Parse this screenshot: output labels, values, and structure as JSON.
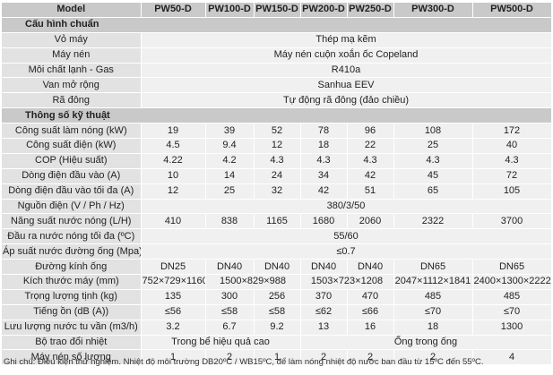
{
  "header": {
    "model_label": "Model",
    "columns": [
      "PW50-D",
      "PW100-D",
      "PW150-D",
      "PW200-D",
      "PW250-D",
      "PW300-D",
      "PW500-D"
    ]
  },
  "sections": {
    "standard": "Cấu hình chuẩn",
    "technical": "Thông số kỹ thuật"
  },
  "standard_rows": [
    {
      "label": "Vỏ máy",
      "value": "Thép mạ kẽm"
    },
    {
      "label": "Máy nén",
      "value": "Máy nén cuộn xoắn ốc Copeland"
    },
    {
      "label": "Môi chất lạnh - Gas",
      "value": "R410a"
    },
    {
      "label": "Van mở rộng",
      "value": "Sanhua EEV"
    },
    {
      "label": "Rã đông",
      "value": "Tự động rã đông (đảo chiều)"
    }
  ],
  "tech": {
    "heating_capacity": {
      "label": "Công suất làm nóng (kW)",
      "values": [
        "19",
        "39",
        "52",
        "78",
        "96",
        "108",
        "172"
      ]
    },
    "power": {
      "label": "Công suất điện (kW)",
      "values": [
        "4.5",
        "9.4",
        "12",
        "18",
        "22",
        "25",
        "40"
      ]
    },
    "cop": {
      "label": "COP (Hiệu suất)",
      "values": [
        "4.22",
        "4.2",
        "4.3",
        "4.3",
        "4.3",
        "4.3",
        "4.3"
      ]
    },
    "input_current": {
      "label": "Dòng điện đầu vào (A)",
      "values": [
        "10",
        "14",
        "24",
        "34",
        "42",
        "45",
        "72"
      ]
    },
    "max_current": {
      "label": "Dòng điện đầu vào tối đa (A)",
      "values": [
        "12",
        "25",
        "32",
        "42",
        "51",
        "65",
        "105"
      ]
    },
    "power_supply": {
      "label": "Nguồn điện (V / Ph / Hz)",
      "value": "380/3/50"
    },
    "hot_water": {
      "label": "Năng suất nước nóng (L/H)",
      "values": [
        "410",
        "838",
        "1165",
        "1680",
        "2060",
        "2322",
        "3700"
      ]
    },
    "max_outlet": {
      "label": "Đầu ra nước nóng tối đa (ºC)",
      "value": "55/60"
    },
    "pipe_pressure": {
      "label": "Áp suất nước đường ống (Mpa)",
      "value": "≤0.7"
    },
    "pipe_diameter": {
      "label": "Đường kính ống",
      "values": [
        "DN25",
        "DN40",
        "DN40",
        "DN40",
        "DN40",
        "DN65",
        "DN65"
      ]
    },
    "dimensions": {
      "label": "Kích thước máy (mm)",
      "values": [
        "752×729×1160",
        "1500×829×988",
        "1503×723×1208",
        "2047×1112×1841",
        "2400×1300×2222"
      ]
    },
    "net_weight": {
      "label": "Trọng lượng tịnh (kg)",
      "values": [
        "135",
        "300",
        "256",
        "370",
        "470",
        "485",
        "485"
      ]
    },
    "noise": {
      "label": "Tiếng ồn (dB (A))",
      "values": [
        "≤56",
        "≤58",
        "≤58",
        "≤62",
        "≤66",
        "≤70",
        "≤70"
      ]
    },
    "circulation": {
      "label": "Lưu lượng nước tu vần (m3/h)",
      "values": [
        "3.2",
        "6.7",
        "9.2",
        "13",
        "16",
        "18",
        "1300"
      ]
    },
    "heat_exchanger": {
      "label": "Bộ trao đổi nhiệt",
      "values": [
        "Trong bể hiệu quả cao",
        "Ống trong ống"
      ]
    },
    "compressor_count": {
      "label": "Máy nén số lượng",
      "values": [
        "1",
        "2",
        "1",
        "2",
        "2",
        "2",
        "4"
      ]
    }
  },
  "footnote": "Ghi chú: Điều kiện thử nghiệm. Nhiệt độ môi trường DB20ºC / WB15ºC, để làm nóng nhiệt độ nước ban đầu từ 15ºC đến 55ºC."
}
